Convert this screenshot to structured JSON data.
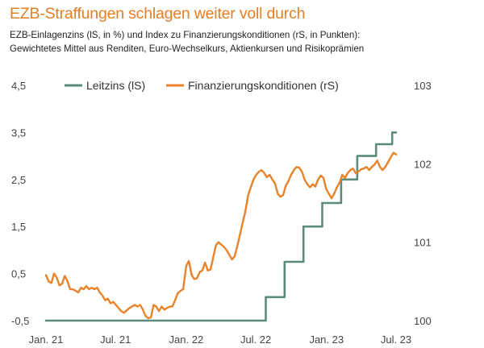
{
  "title": "EZB-Straffungen schlagen weiter voll durch",
  "subtitle_line1": "EZB-Einlagenzins (lS, in %) und Index zu Finanzierungskonditionen (rS, in Punkten):",
  "subtitle_line2": "Gewichtetes Mittel aus Renditen, Euro-Wechselkurs, Aktienkursen und Risikoprämien",
  "colors": {
    "leitzins": "#5b8c7a",
    "finanzierung": "#e8832a",
    "axis": "#222222"
  },
  "chart_data": {
    "type": "line",
    "legend_placement": "top",
    "grid": false,
    "x_ticks": [
      "Jan. 21",
      "Jul. 21",
      "Jan. 22",
      "Jul. 22",
      "Jan. 23",
      "Jul. 23"
    ],
    "y_left_ticks": [
      "4,5",
      "3,5",
      "2,5",
      "1,5",
      "0,5",
      "-0,5"
    ],
    "y_right_ticks": [
      "103",
      "102",
      "101",
      "100"
    ],
    "y_left_range": [
      -0.5,
      4.5
    ],
    "y_right_range": [
      100,
      103
    ],
    "series": [
      {
        "name": "Leitzins (lS)",
        "axis": "left",
        "points": [
          [
            "2021-01-01",
            -0.5
          ],
          [
            "2022-07-27",
            -0.5
          ],
          [
            "2022-07-27",
            0.0
          ],
          [
            "2022-09-14",
            0.0
          ],
          [
            "2022-09-14",
            0.75
          ],
          [
            "2022-11-02",
            0.75
          ],
          [
            "2022-11-02",
            1.5
          ],
          [
            "2022-12-21",
            1.5
          ],
          [
            "2022-12-21",
            2.0
          ],
          [
            "2023-02-08",
            2.0
          ],
          [
            "2023-02-08",
            2.5
          ],
          [
            "2023-03-22",
            2.5
          ],
          [
            "2023-03-22",
            3.0
          ],
          [
            "2023-05-10",
            3.0
          ],
          [
            "2023-05-10",
            3.25
          ],
          [
            "2023-06-21",
            3.25
          ],
          [
            "2023-06-21",
            3.5
          ],
          [
            "2023-07-01",
            3.5
          ]
        ]
      },
      {
        "name": "Finanzierungskonditionen (rS)",
        "axis": "right",
        "points": [
          [
            "2021-01-01",
            100.58
          ],
          [
            "2021-01-08",
            100.5
          ],
          [
            "2021-01-15",
            100.48
          ],
          [
            "2021-01-22",
            100.6
          ],
          [
            "2021-01-29",
            100.55
          ],
          [
            "2021-02-05",
            100.45
          ],
          [
            "2021-02-12",
            100.47
          ],
          [
            "2021-02-19",
            100.57
          ],
          [
            "2021-02-26",
            100.5
          ],
          [
            "2021-03-05",
            100.4
          ],
          [
            "2021-03-12",
            100.4
          ],
          [
            "2021-03-19",
            100.38
          ],
          [
            "2021-03-26",
            100.36
          ],
          [
            "2021-04-02",
            100.42
          ],
          [
            "2021-04-09",
            100.4
          ],
          [
            "2021-04-16",
            100.44
          ],
          [
            "2021-04-23",
            100.4
          ],
          [
            "2021-04-30",
            100.42
          ],
          [
            "2021-05-07",
            100.4
          ],
          [
            "2021-05-14",
            100.42
          ],
          [
            "2021-05-21",
            100.36
          ],
          [
            "2021-05-28",
            100.32
          ],
          [
            "2021-06-04",
            100.26
          ],
          [
            "2021-06-11",
            100.28
          ],
          [
            "2021-06-18",
            100.22
          ],
          [
            "2021-06-25",
            100.24
          ],
          [
            "2021-07-02",
            100.2
          ],
          [
            "2021-07-09",
            100.16
          ],
          [
            "2021-07-16",
            100.12
          ],
          [
            "2021-07-23",
            100.1
          ],
          [
            "2021-07-30",
            100.13
          ],
          [
            "2021-08-06",
            100.16
          ],
          [
            "2021-08-13",
            100.18
          ],
          [
            "2021-08-20",
            100.2
          ],
          [
            "2021-08-27",
            100.18
          ],
          [
            "2021-09-03",
            100.2
          ],
          [
            "2021-09-10",
            100.14
          ],
          [
            "2021-09-17",
            100.06
          ],
          [
            "2021-09-24",
            100.03
          ],
          [
            "2021-10-01",
            100.04
          ],
          [
            "2021-10-08",
            100.2
          ],
          [
            "2021-10-15",
            100.18
          ],
          [
            "2021-10-22",
            100.12
          ],
          [
            "2021-10-29",
            100.18
          ],
          [
            "2021-11-05",
            100.14
          ],
          [
            "2021-11-12",
            100.16
          ],
          [
            "2021-11-19",
            100.18
          ],
          [
            "2021-11-26",
            100.18
          ],
          [
            "2021-12-03",
            100.26
          ],
          [
            "2021-12-10",
            100.35
          ],
          [
            "2021-12-17",
            100.38
          ],
          [
            "2021-12-24",
            100.4
          ],
          [
            "2022-01-01",
            100.7
          ],
          [
            "2022-01-08",
            100.76
          ],
          [
            "2022-01-15",
            100.58
          ],
          [
            "2022-01-22",
            100.53
          ],
          [
            "2022-01-29",
            100.54
          ],
          [
            "2022-02-05",
            100.62
          ],
          [
            "2022-02-12",
            100.64
          ],
          [
            "2022-02-19",
            100.74
          ],
          [
            "2022-02-26",
            100.64
          ],
          [
            "2022-03-05",
            100.65
          ],
          [
            "2022-03-12",
            100.8
          ],
          [
            "2022-03-19",
            100.96
          ],
          [
            "2022-03-26",
            101.0
          ],
          [
            "2022-04-02",
            100.97
          ],
          [
            "2022-04-09",
            100.94
          ],
          [
            "2022-04-16",
            100.9
          ],
          [
            "2022-04-23",
            100.84
          ],
          [
            "2022-04-30",
            100.78
          ],
          [
            "2022-05-07",
            100.82
          ],
          [
            "2022-05-14",
            100.95
          ],
          [
            "2022-05-21",
            101.1
          ],
          [
            "2022-05-28",
            101.25
          ],
          [
            "2022-06-04",
            101.4
          ],
          [
            "2022-06-11",
            101.6
          ],
          [
            "2022-06-18",
            101.7
          ],
          [
            "2022-06-25",
            101.8
          ],
          [
            "2022-07-02",
            101.86
          ],
          [
            "2022-07-09",
            101.9
          ],
          [
            "2022-07-16",
            101.92
          ],
          [
            "2022-07-23",
            101.88
          ],
          [
            "2022-07-30",
            101.83
          ],
          [
            "2022-08-06",
            101.86
          ],
          [
            "2022-08-13",
            101.8
          ],
          [
            "2022-08-20",
            101.75
          ],
          [
            "2022-08-27",
            101.62
          ],
          [
            "2022-09-03",
            101.58
          ],
          [
            "2022-09-10",
            101.6
          ],
          [
            "2022-09-17",
            101.72
          ],
          [
            "2022-09-24",
            101.78
          ],
          [
            "2022-10-01",
            101.86
          ],
          [
            "2022-10-08",
            101.92
          ],
          [
            "2022-10-15",
            101.96
          ],
          [
            "2022-10-22",
            101.95
          ],
          [
            "2022-10-29",
            101.9
          ],
          [
            "2022-11-05",
            101.8
          ],
          [
            "2022-11-12",
            101.74
          ],
          [
            "2022-11-19",
            101.7
          ],
          [
            "2022-11-26",
            101.74
          ],
          [
            "2022-12-03",
            101.71
          ],
          [
            "2022-12-10",
            101.8
          ],
          [
            "2022-12-17",
            101.85
          ],
          [
            "2022-12-24",
            101.82
          ],
          [
            "2022-12-31",
            101.68
          ],
          [
            "2023-01-07",
            101.62
          ],
          [
            "2023-01-14",
            101.56
          ],
          [
            "2023-01-21",
            101.62
          ],
          [
            "2023-01-28",
            101.7
          ],
          [
            "2023-02-04",
            101.76
          ],
          [
            "2023-02-11",
            101.86
          ],
          [
            "2023-02-18",
            101.82
          ],
          [
            "2023-02-25",
            101.88
          ],
          [
            "2023-03-04",
            101.92
          ],
          [
            "2023-03-11",
            101.94
          ],
          [
            "2023-03-18",
            101.88
          ],
          [
            "2023-03-25",
            101.9
          ],
          [
            "2023-04-01",
            101.93
          ],
          [
            "2023-04-08",
            101.94
          ],
          [
            "2023-04-15",
            101.96
          ],
          [
            "2023-04-22",
            101.92
          ],
          [
            "2023-04-29",
            101.96
          ],
          [
            "2023-05-06",
            101.99
          ],
          [
            "2023-05-13",
            102.04
          ],
          [
            "2023-05-20",
            101.96
          ],
          [
            "2023-05-27",
            101.92
          ],
          [
            "2023-06-03",
            101.96
          ],
          [
            "2023-06-10",
            102.02
          ],
          [
            "2023-06-17",
            102.08
          ],
          [
            "2023-06-24",
            102.14
          ],
          [
            "2023-07-01",
            102.12
          ]
        ]
      }
    ]
  }
}
